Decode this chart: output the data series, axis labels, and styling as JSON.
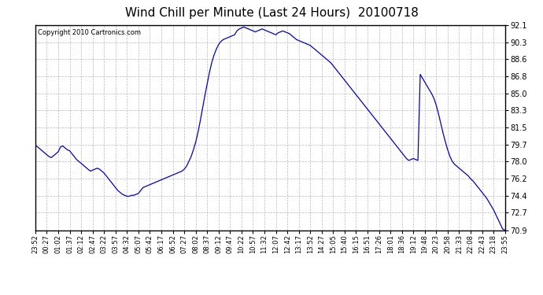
{
  "title": "Wind Chill per Minute (Last 24 Hours)  20100718",
  "copyright": "Copyright 2010 Cartronics.com",
  "line_color": "#0000CC",
  "background_color": "#ffffff",
  "plot_bg_color": "#ffffff",
  "grid_color": "#aaaaaa",
  "ylim": [
    70.9,
    92.1
  ],
  "yticks": [
    70.9,
    72.7,
    74.4,
    76.2,
    78.0,
    79.7,
    81.5,
    83.3,
    85.0,
    86.8,
    88.6,
    90.3,
    92.1
  ],
  "xtick_labels": [
    "23:52",
    "00:27",
    "01:02",
    "01:37",
    "02:12",
    "02:47",
    "03:22",
    "03:57",
    "04:32",
    "05:07",
    "05:42",
    "06:17",
    "06:52",
    "07:27",
    "08:02",
    "08:37",
    "09:12",
    "09:47",
    "10:22",
    "10:57",
    "11:32",
    "12:07",
    "12:42",
    "13:17",
    "13:52",
    "14:27",
    "15:05",
    "15:40",
    "16:15",
    "16:51",
    "17:26",
    "18:01",
    "18:36",
    "19:12",
    "19:48",
    "20:23",
    "20:58",
    "21:33",
    "22:08",
    "22:43",
    "23:18",
    "23:55"
  ],
  "y_values": [
    79.7,
    79.5,
    79.3,
    79.1,
    78.9,
    78.7,
    78.5,
    78.4,
    78.6,
    78.8,
    79.0,
    79.5,
    79.6,
    79.4,
    79.2,
    79.1,
    78.8,
    78.5,
    78.2,
    78.0,
    77.8,
    77.6,
    77.4,
    77.2,
    77.0,
    77.1,
    77.2,
    77.3,
    77.2,
    77.0,
    76.8,
    76.5,
    76.2,
    75.9,
    75.6,
    75.3,
    75.0,
    74.8,
    74.6,
    74.5,
    74.4,
    74.4,
    74.5,
    74.5,
    74.6,
    74.7,
    75.0,
    75.3,
    75.4,
    75.5,
    75.6,
    75.7,
    75.8,
    75.9,
    76.0,
    76.1,
    76.2,
    76.3,
    76.4,
    76.5,
    76.6,
    76.7,
    76.8,
    76.9,
    77.0,
    77.2,
    77.5,
    78.0,
    78.5,
    79.2,
    80.0,
    81.0,
    82.2,
    83.5,
    84.8,
    86.0,
    87.2,
    88.2,
    89.0,
    89.6,
    90.1,
    90.4,
    90.6,
    90.7,
    90.8,
    90.9,
    91.0,
    91.1,
    91.5,
    91.7,
    91.8,
    91.9,
    91.8,
    91.7,
    91.6,
    91.5,
    91.4,
    91.5,
    91.6,
    91.7,
    91.6,
    91.5,
    91.4,
    91.3,
    91.2,
    91.1,
    91.3,
    91.4,
    91.5,
    91.4,
    91.3,
    91.2,
    91.0,
    90.8,
    90.6,
    90.5,
    90.4,
    90.3,
    90.2,
    90.1,
    90.0,
    89.8,
    89.6,
    89.4,
    89.2,
    89.0,
    88.8,
    88.6,
    88.4,
    88.2,
    87.9,
    87.6,
    87.3,
    87.0,
    86.7,
    86.4,
    86.1,
    85.8,
    85.5,
    85.2,
    84.9,
    84.6,
    84.3,
    84.0,
    83.7,
    83.4,
    83.1,
    82.8,
    82.5,
    82.2,
    81.9,
    81.6,
    81.3,
    81.0,
    80.7,
    80.4,
    80.1,
    79.8,
    79.5,
    79.2,
    78.9,
    78.6,
    78.3,
    78.1,
    78.2,
    78.3,
    78.2,
    78.1,
    87.0,
    86.6,
    86.2,
    85.8,
    85.4,
    85.0,
    84.5,
    83.8,
    82.9,
    81.9,
    80.9,
    80.0,
    79.2,
    78.5,
    78.0,
    77.7,
    77.5,
    77.3,
    77.1,
    76.9,
    76.7,
    76.5,
    76.2,
    76.0,
    75.7,
    75.4,
    75.1,
    74.8,
    74.5,
    74.2,
    73.8,
    73.4,
    73.0,
    72.5,
    72.0,
    71.5,
    71.0,
    70.9
  ]
}
